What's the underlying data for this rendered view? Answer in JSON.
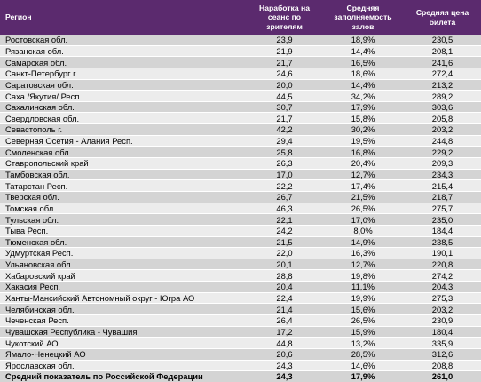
{
  "header": {
    "region": "Регион",
    "col_a": "Наработка на сеанс по зрителям",
    "col_b": "Средняя заполняемость залов",
    "col_c": "Средняя цена билета"
  },
  "rows": [
    {
      "region": "Ростовская обл.",
      "a": "23,9",
      "b": "18,9%",
      "c": "230,5"
    },
    {
      "region": "Рязанская обл.",
      "a": "21,9",
      "b": "14,4%",
      "c": "208,1"
    },
    {
      "region": "Самарская обл.",
      "a": "21,7",
      "b": "16,5%",
      "c": "241,6"
    },
    {
      "region": "Санкт-Петербург г.",
      "a": "24,6",
      "b": "18,6%",
      "c": "272,4"
    },
    {
      "region": "Саратовская обл.",
      "a": "20,0",
      "b": "14,4%",
      "c": "213,2"
    },
    {
      "region": "Саха /Якутия/ Респ.",
      "a": "44,5",
      "b": "34,2%",
      "c": "289,2"
    },
    {
      "region": "Сахалинская обл.",
      "a": "30,7",
      "b": "17,9%",
      "c": "303,6"
    },
    {
      "region": "Свердловская обл.",
      "a": "21,7",
      "b": "15,8%",
      "c": "205,8"
    },
    {
      "region": "Севастополь г.",
      "a": "42,2",
      "b": "30,2%",
      "c": "203,2"
    },
    {
      "region": "Северная Осетия - Алания Респ.",
      "a": "29,4",
      "b": "19,5%",
      "c": "244,8"
    },
    {
      "region": "Смоленская обл.",
      "a": "25,8",
      "b": "16,8%",
      "c": "229,2"
    },
    {
      "region": "Ставропольский край",
      "a": "26,3",
      "b": "20,4%",
      "c": "209,3"
    },
    {
      "region": "Тамбовская обл.",
      "a": "17,0",
      "b": "12,7%",
      "c": "234,3"
    },
    {
      "region": "Татарстан Респ.",
      "a": "22,2",
      "b": "17,4%",
      "c": "215,4"
    },
    {
      "region": "Тверская обл.",
      "a": "26,7",
      "b": "21,5%",
      "c": "218,7"
    },
    {
      "region": "Томская обл.",
      "a": "46,3",
      "b": "26,5%",
      "c": "275,7"
    },
    {
      "region": "Тульская обл.",
      "a": "22,1",
      "b": "17,0%",
      "c": "235,0"
    },
    {
      "region": "Тыва Респ.",
      "a": "24,2",
      "b": "8,0%",
      "c": "184,4"
    },
    {
      "region": "Тюменская обл.",
      "a": "21,5",
      "b": "14,9%",
      "c": "238,5"
    },
    {
      "region": "Удмуртская Респ.",
      "a": "22,0",
      "b": "16,3%",
      "c": "190,1"
    },
    {
      "region": "Ульяновская обл.",
      "a": "20,1",
      "b": "12,7%",
      "c": "220,8"
    },
    {
      "region": "Хабаровский край",
      "a": "28,8",
      "b": "19,8%",
      "c": "274,2"
    },
    {
      "region": "Хакасия Респ.",
      "a": "20,4",
      "b": "11,1%",
      "c": "204,3"
    },
    {
      "region": "Ханты-Мансийский Автономный округ - Югра АО",
      "a": "22,4",
      "b": "19,9%",
      "c": "275,3"
    },
    {
      "region": "Челябинская обл.",
      "a": "21,4",
      "b": "15,6%",
      "c": "203,2"
    },
    {
      "region": "Чеченская Респ.",
      "a": "26,4",
      "b": "26,5%",
      "c": "230,9"
    },
    {
      "region": "Чувашская Республика - Чувашия",
      "a": "17,2",
      "b": "15,9%",
      "c": "180,4"
    },
    {
      "region": "Чукотский АО",
      "a": "44,8",
      "b": "13,2%",
      "c": "335,9"
    },
    {
      "region": "Ямало-Ненецкий АО",
      "a": "20,6",
      "b": "28,5%",
      "c": "312,6"
    },
    {
      "region": "Ярославская обл.",
      "a": "24,3",
      "b": "14,6%",
      "c": "208,8"
    }
  ],
  "footer": {
    "region": "Средний показатель по Российской Федерации",
    "a": "24,3",
    "b": "17,9%",
    "c": "261,0"
  }
}
